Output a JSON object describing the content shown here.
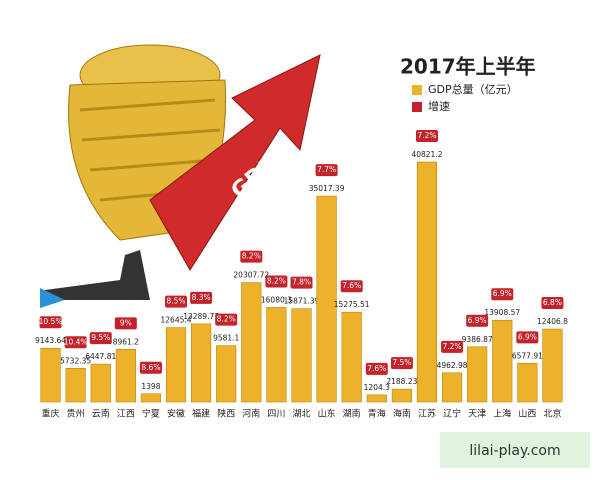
{
  "chart_data": {
    "type": "bar",
    "title": "2017年上半年",
    "categories": [
      "重庆",
      "贵州",
      "云南",
      "江西",
      "宁夏",
      "安徽",
      "福建",
      "陕西",
      "河南",
      "四川",
      "湖北",
      "山东",
      "湖南",
      "青海",
      "海南",
      "江苏",
      "辽宁",
      "天津",
      "上海",
      "山西",
      "北京"
    ],
    "series": [
      {
        "name": "GDP总量（亿元）",
        "color": "#eeb22a",
        "values": [
          9143.64,
          5732.35,
          6447.81,
          8961.2,
          1398,
          12645.4,
          13289.77,
          9581.1,
          20307.72,
          16080.3,
          15871.39,
          35017.39,
          15275.51,
          1204.3,
          2188.23,
          40821.2,
          4962.98,
          9386.87,
          13908.57,
          6577.91,
          12406.8
        ]
      },
      {
        "name": "增速",
        "color": "#c4232b",
        "values": [
          10.5,
          10.4,
          9.5,
          9,
          8.6,
          8.5,
          8.3,
          8.2,
          8.2,
          8.2,
          7.8,
          7.7,
          7.6,
          7.6,
          7.5,
          7.2,
          7.2,
          6.9,
          6.9,
          6.9,
          6.8
        ],
        "value_labels": [
          "10.5%",
          "10.4%",
          "9.5%",
          "9%",
          "8.6%",
          "8.5%",
          "8.3%",
          "8.2%",
          "8.2%",
          "8.2%",
          "7.8%",
          "7.7%",
          "7.6%",
          "7.6%",
          "7.5%",
          "7.2%",
          "7.2%",
          "6.9%",
          "6.9%",
          "6.9%",
          "6.8%"
        ]
      }
    ],
    "watermark": "lilai-play.com"
  }
}
